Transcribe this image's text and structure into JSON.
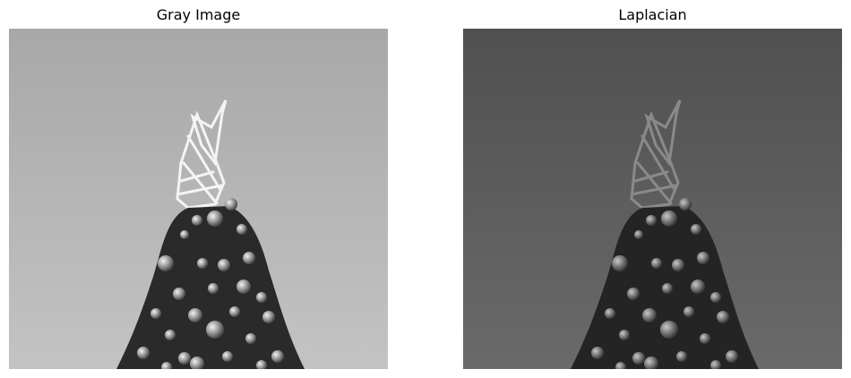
{
  "panels": [
    {
      "title": "Gray Image",
      "image": "christmas-tree-grayscale"
    },
    {
      "title": "Laplacian",
      "image": "christmas-tree-laplacian"
    }
  ],
  "colors": {
    "gray_sky_top": "#a8a8a8",
    "gray_sky_bottom": "#c3c3c3",
    "laplacian_sky_top": "#505050",
    "laplacian_sky_bottom": "#6a6a6a",
    "tree_dark": "#262626",
    "ornament_light": "#d8d8d8"
  }
}
